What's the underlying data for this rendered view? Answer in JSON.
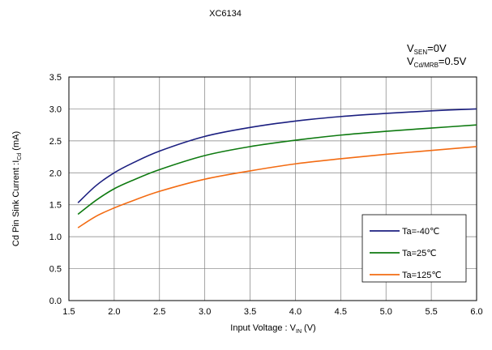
{
  "chart_data": {
    "type": "line",
    "title": "XC6134",
    "conditions": [
      {
        "base": "V",
        "sub": "SEN",
        "value": "=0V"
      },
      {
        "base": "V",
        "sub": "Cd/MRB",
        "value": "=0.5V"
      }
    ],
    "xlabel": {
      "prefix": "Input Voltage : V",
      "sub": "IN",
      "suffix": " (V)"
    },
    "ylabel": {
      "prefix": "Cd Pin Sink Current :I",
      "sub": "Cd",
      "suffix": " (mA)"
    },
    "xlim": [
      1.5,
      6.0
    ],
    "ylim": [
      0.0,
      3.5
    ],
    "x_ticks": [
      "1.5",
      "2.0",
      "2.5",
      "3.0",
      "3.5",
      "4.0",
      "4.5",
      "5.0",
      "5.5",
      "6.0"
    ],
    "y_ticks": [
      "0.0",
      "0.5",
      "1.0",
      "1.5",
      "2.0",
      "2.5",
      "3.0",
      "3.5"
    ],
    "grid": true,
    "legend_position": "bottom-right",
    "x": [
      1.6,
      1.8,
      2.0,
      2.2,
      2.5,
      3.0,
      3.5,
      4.0,
      4.5,
      5.0,
      5.5,
      6.0
    ],
    "series": [
      {
        "name": "Ta=-40℃",
        "color": "#1b1f80",
        "values": [
          1.53,
          1.8,
          2.0,
          2.15,
          2.34,
          2.57,
          2.71,
          2.81,
          2.88,
          2.93,
          2.97,
          3.0
        ]
      },
      {
        "name": "Ta=25℃",
        "color": "#0e7a10",
        "values": [
          1.35,
          1.57,
          1.75,
          1.88,
          2.05,
          2.27,
          2.41,
          2.51,
          2.59,
          2.65,
          2.7,
          2.75
        ]
      },
      {
        "name": "Ta=125℃",
        "color": "#f36b12",
        "values": [
          1.14,
          1.32,
          1.45,
          1.56,
          1.71,
          1.9,
          2.03,
          2.14,
          2.22,
          2.29,
          2.35,
          2.41
        ]
      }
    ]
  }
}
